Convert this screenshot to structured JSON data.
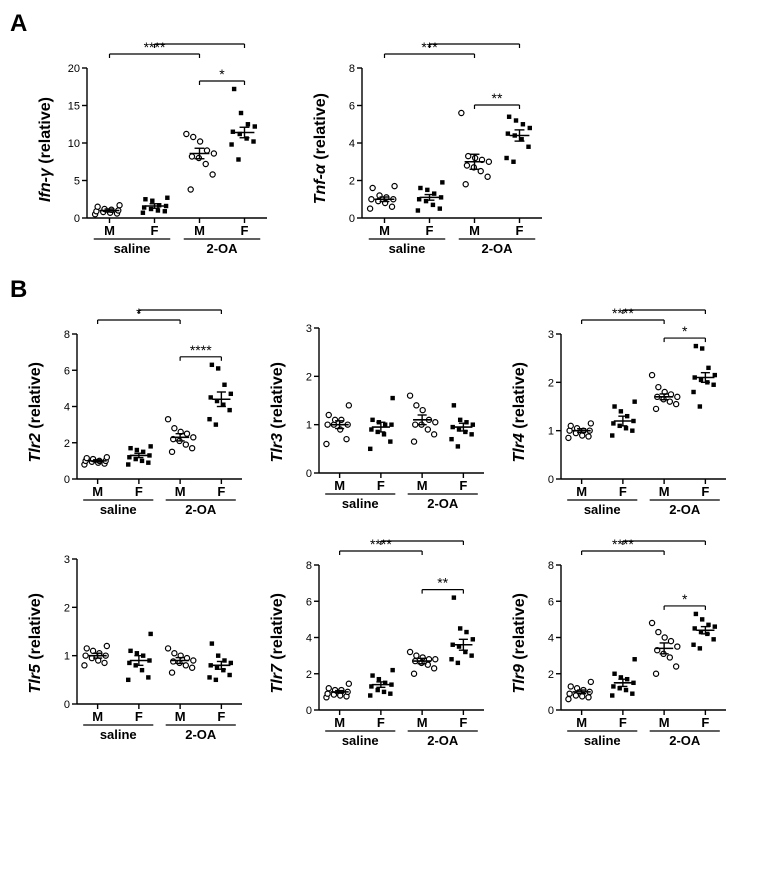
{
  "colors": {
    "axis": "#000000",
    "text": "#000000",
    "sig": "#000000",
    "open_stroke": "#000000",
    "filled_fill": "#000000",
    "bg": "#ffffff"
  },
  "marker": {
    "size": 5.2,
    "stroke": 1.2
  },
  "axis_stroke": 1.4,
  "tick_len": 5,
  "tick_label_fontsize": 11,
  "xlabel_fontsize": 13,
  "sig_fontsize": 14,
  "panelA": [
    {
      "ylabel": "Ifn-γ",
      "ylim": [
        0,
        20
      ],
      "ytick_step": 5,
      "sig_top_pad": 28,
      "groups": [
        {
          "label": "M",
          "treat": "saline",
          "marker": "open",
          "mean": 1.0,
          "sem": 0.2,
          "pts": [
            0.5,
            0.6,
            0.7,
            0.8,
            0.9,
            1.0,
            1.1,
            1.2,
            1.5,
            1.7
          ]
        },
        {
          "label": "F",
          "treat": "saline",
          "marker": "filled",
          "mean": 1.6,
          "sem": 0.3,
          "pts": [
            0.7,
            0.9,
            1.0,
            1.2,
            1.4,
            1.6,
            1.7,
            2.3,
            2.5,
            2.7
          ]
        },
        {
          "label": "M",
          "treat": "2-OA",
          "marker": "open",
          "mean": 8.6,
          "sem": 0.7,
          "pts": [
            3.8,
            5.8,
            7.2,
            8.0,
            8.2,
            8.6,
            9.0,
            10.2,
            10.8,
            11.2
          ]
        },
        {
          "label": "F",
          "treat": "2-OA",
          "marker": "filled",
          "mean": 11.4,
          "sem": 0.7,
          "pts": [
            7.8,
            9.8,
            10.2,
            10.6,
            11.2,
            11.5,
            12.2,
            12.5,
            14.0,
            17.2
          ]
        }
      ],
      "sig": [
        {
          "from": 0,
          "to": 2,
          "level": 0,
          "label": "****"
        },
        {
          "from": 1,
          "to": 3,
          "level": 1,
          "label": "****"
        },
        {
          "from": 2,
          "to": 3,
          "level": -1,
          "label": "*"
        }
      ]
    },
    {
      "ylabel": "Tnf-α",
      "ylim": [
        0,
        8
      ],
      "ytick_step": 2,
      "sig_top_pad": 28,
      "groups": [
        {
          "label": "M",
          "treat": "saline",
          "marker": "open",
          "mean": 1.0,
          "sem": 0.12,
          "pts": [
            0.5,
            0.6,
            0.8,
            0.9,
            1.0,
            1.0,
            1.1,
            1.2,
            1.6,
            1.7
          ]
        },
        {
          "label": "F",
          "treat": "saline",
          "marker": "filled",
          "mean": 1.1,
          "sem": 0.15,
          "pts": [
            0.4,
            0.5,
            0.7,
            0.9,
            1.0,
            1.1,
            1.3,
            1.5,
            1.6,
            1.9
          ]
        },
        {
          "label": "M",
          "treat": "2-OA",
          "marker": "open",
          "mean": 3.0,
          "sem": 0.4,
          "pts": [
            1.8,
            2.2,
            2.5,
            2.7,
            2.8,
            3.0,
            3.1,
            3.2,
            3.3,
            5.6
          ]
        },
        {
          "label": "F",
          "treat": "2-OA",
          "marker": "filled",
          "mean": 4.4,
          "sem": 0.3,
          "pts": [
            3.0,
            3.2,
            3.8,
            4.2,
            4.4,
            4.5,
            4.8,
            5.0,
            5.2,
            5.4
          ]
        }
      ],
      "sig": [
        {
          "from": 0,
          "to": 2,
          "level": 0,
          "label": "***"
        },
        {
          "from": 1,
          "to": 3,
          "level": 1,
          "label": "****"
        },
        {
          "from": 2,
          "to": 3,
          "level": -1,
          "label": "**"
        }
      ]
    }
  ],
  "panelB": [
    {
      "ylabel": "Tlr2",
      "ylim": [
        0,
        8
      ],
      "ytick_step": 2,
      "sig_top_pad": 28,
      "groups": [
        {
          "label": "M",
          "treat": "saline",
          "marker": "open",
          "mean": 1.0,
          "sem": 0.06,
          "pts": [
            0.8,
            0.85,
            0.9,
            0.95,
            1.0,
            1.0,
            1.0,
            1.1,
            1.15,
            1.2
          ]
        },
        {
          "label": "F",
          "treat": "saline",
          "marker": "filled",
          "mean": 1.3,
          "sem": 0.12,
          "pts": [
            0.8,
            0.9,
            1.0,
            1.1,
            1.2,
            1.3,
            1.5,
            1.6,
            1.7,
            1.8
          ]
        },
        {
          "label": "M",
          "treat": "2-OA",
          "marker": "open",
          "mean": 2.3,
          "sem": 0.2,
          "pts": [
            1.5,
            1.7,
            1.9,
            2.1,
            2.2,
            2.3,
            2.5,
            2.6,
            2.8,
            3.3
          ]
        },
        {
          "label": "F",
          "treat": "2-OA",
          "marker": "filled",
          "mean": 4.4,
          "sem": 0.4,
          "pts": [
            3.0,
            3.3,
            3.8,
            4.1,
            4.3,
            4.5,
            4.7,
            5.2,
            6.1,
            6.3
          ]
        }
      ],
      "sig": [
        {
          "from": 0,
          "to": 2,
          "level": 0,
          "label": "*"
        },
        {
          "from": 1,
          "to": 3,
          "level": 1,
          "label": "****"
        },
        {
          "from": 2,
          "to": 3,
          "level": -1,
          "label": "****"
        }
      ]
    },
    {
      "ylabel": "Tlr3",
      "ylim": [
        0,
        3
      ],
      "ytick_step": 1,
      "sig_top_pad": 16,
      "groups": [
        {
          "label": "M",
          "treat": "saline",
          "marker": "open",
          "mean": 1.0,
          "sem": 0.08,
          "pts": [
            0.6,
            0.7,
            0.9,
            1.0,
            1.0,
            1.0,
            1.1,
            1.1,
            1.2,
            1.4
          ]
        },
        {
          "label": "F",
          "treat": "saline",
          "marker": "filled",
          "mean": 0.95,
          "sem": 0.1,
          "pts": [
            0.5,
            0.65,
            0.8,
            0.85,
            0.9,
            1.0,
            1.0,
            1.05,
            1.1,
            1.55
          ]
        },
        {
          "label": "M",
          "treat": "2-OA",
          "marker": "open",
          "mean": 1.1,
          "sem": 0.1,
          "pts": [
            0.65,
            0.8,
            0.9,
            1.0,
            1.0,
            1.05,
            1.1,
            1.3,
            1.4,
            1.6
          ]
        },
        {
          "label": "F",
          "treat": "2-OA",
          "marker": "filled",
          "mean": 0.95,
          "sem": 0.08,
          "pts": [
            0.55,
            0.7,
            0.8,
            0.85,
            0.9,
            0.95,
            1.0,
            1.05,
            1.1,
            1.4
          ]
        }
      ],
      "sig": []
    },
    {
      "ylabel": "Tlr4",
      "ylim": [
        0,
        3
      ],
      "ytick_step": 1,
      "sig_top_pad": 28,
      "groups": [
        {
          "label": "M",
          "treat": "saline",
          "marker": "open",
          "mean": 1.0,
          "sem": 0.04,
          "pts": [
            0.85,
            0.88,
            0.9,
            0.95,
            1.0,
            1.0,
            1.0,
            1.05,
            1.1,
            1.15
          ]
        },
        {
          "label": "F",
          "treat": "saline",
          "marker": "filled",
          "mean": 1.2,
          "sem": 0.1,
          "pts": [
            0.9,
            1.0,
            1.05,
            1.1,
            1.15,
            1.2,
            1.3,
            1.4,
            1.5,
            1.6
          ]
        },
        {
          "label": "M",
          "treat": "2-OA",
          "marker": "open",
          "mean": 1.7,
          "sem": 0.06,
          "pts": [
            1.45,
            1.55,
            1.6,
            1.65,
            1.7,
            1.7,
            1.75,
            1.8,
            1.9,
            2.15
          ]
        },
        {
          "label": "F",
          "treat": "2-OA",
          "marker": "filled",
          "mean": 2.1,
          "sem": 0.1,
          "pts": [
            1.5,
            1.8,
            1.95,
            2.0,
            2.05,
            2.1,
            2.15,
            2.3,
            2.7,
            2.75
          ]
        }
      ],
      "sig": [
        {
          "from": 0,
          "to": 2,
          "level": 0,
          "label": "****"
        },
        {
          "from": 1,
          "to": 3,
          "level": 1,
          "label": "****"
        },
        {
          "from": 2,
          "to": 3,
          "level": -1,
          "label": "*"
        }
      ]
    },
    {
      "ylabel": "Tlr5",
      "ylim": [
        0,
        3
      ],
      "ytick_step": 1,
      "sig_top_pad": 16,
      "groups": [
        {
          "label": "M",
          "treat": "saline",
          "marker": "open",
          "mean": 1.0,
          "sem": 0.05,
          "pts": [
            0.8,
            0.85,
            0.9,
            0.95,
            1.0,
            1.0,
            1.05,
            1.1,
            1.15,
            1.2
          ]
        },
        {
          "label": "F",
          "treat": "saline",
          "marker": "filled",
          "mean": 0.9,
          "sem": 0.1,
          "pts": [
            0.5,
            0.55,
            0.7,
            0.8,
            0.85,
            0.9,
            1.0,
            1.05,
            1.1,
            1.45
          ]
        },
        {
          "label": "M",
          "treat": "2-OA",
          "marker": "open",
          "mean": 0.9,
          "sem": 0.06,
          "pts": [
            0.65,
            0.75,
            0.8,
            0.85,
            0.88,
            0.9,
            0.95,
            1.0,
            1.05,
            1.15
          ]
        },
        {
          "label": "F",
          "treat": "2-OA",
          "marker": "filled",
          "mean": 0.8,
          "sem": 0.08,
          "pts": [
            0.5,
            0.55,
            0.6,
            0.7,
            0.75,
            0.8,
            0.85,
            0.9,
            1.0,
            1.25
          ]
        }
      ],
      "sig": []
    },
    {
      "ylabel": "Tlr7",
      "ylim": [
        0,
        8
      ],
      "ytick_step": 2,
      "sig_top_pad": 28,
      "groups": [
        {
          "label": "M",
          "treat": "saline",
          "marker": "open",
          "mean": 1.0,
          "sem": 0.07,
          "pts": [
            0.7,
            0.75,
            0.8,
            0.85,
            0.9,
            1.0,
            1.1,
            1.1,
            1.2,
            1.45
          ]
        },
        {
          "label": "F",
          "treat": "saline",
          "marker": "filled",
          "mean": 1.4,
          "sem": 0.15,
          "pts": [
            0.8,
            0.9,
            1.0,
            1.1,
            1.3,
            1.4,
            1.5,
            1.7,
            1.9,
            2.2
          ]
        },
        {
          "label": "M",
          "treat": "2-OA",
          "marker": "open",
          "mean": 2.7,
          "sem": 0.15,
          "pts": [
            2.0,
            2.3,
            2.5,
            2.6,
            2.7,
            2.8,
            2.8,
            2.9,
            3.0,
            3.2
          ]
        },
        {
          "label": "F",
          "treat": "2-OA",
          "marker": "filled",
          "mean": 3.6,
          "sem": 0.3,
          "pts": [
            2.6,
            2.8,
            3.0,
            3.2,
            3.5,
            3.6,
            3.9,
            4.3,
            4.5,
            6.2
          ]
        }
      ],
      "sig": [
        {
          "from": 0,
          "to": 2,
          "level": 0,
          "label": "****"
        },
        {
          "from": 1,
          "to": 3,
          "level": 1,
          "label": "****"
        },
        {
          "from": 2,
          "to": 3,
          "level": -1,
          "label": "**"
        }
      ]
    },
    {
      "ylabel": "Tlr9",
      "ylim": [
        0,
        8
      ],
      "ytick_step": 2,
      "sig_top_pad": 28,
      "groups": [
        {
          "label": "M",
          "treat": "saline",
          "marker": "open",
          "mean": 1.0,
          "sem": 0.1,
          "pts": [
            0.6,
            0.7,
            0.75,
            0.8,
            0.9,
            1.0,
            1.1,
            1.2,
            1.3,
            1.55
          ]
        },
        {
          "label": "F",
          "treat": "saline",
          "marker": "filled",
          "mean": 1.5,
          "sem": 0.2,
          "pts": [
            0.8,
            0.9,
            1.1,
            1.2,
            1.3,
            1.5,
            1.7,
            1.8,
            2.0,
            2.8
          ]
        },
        {
          "label": "M",
          "treat": "2-OA",
          "marker": "open",
          "mean": 3.4,
          "sem": 0.3,
          "pts": [
            2.0,
            2.4,
            2.9,
            3.1,
            3.3,
            3.5,
            3.8,
            4.0,
            4.3,
            4.8
          ]
        },
        {
          "label": "F",
          "treat": "2-OA",
          "marker": "filled",
          "mean": 4.4,
          "sem": 0.2,
          "pts": [
            3.4,
            3.6,
            3.9,
            4.2,
            4.3,
            4.5,
            4.6,
            4.7,
            5.0,
            5.3
          ]
        }
      ],
      "sig": [
        {
          "from": 0,
          "to": 2,
          "level": 0,
          "label": "****"
        },
        {
          "from": 1,
          "to": 3,
          "level": 1,
          "label": "****"
        },
        {
          "from": 2,
          "to": 3,
          "level": -1,
          "label": "*"
        }
      ]
    }
  ],
  "x_group_labels": [
    "M",
    "F",
    "M",
    "F"
  ],
  "x_treat_labels": [
    "saline",
    "2-OA"
  ]
}
